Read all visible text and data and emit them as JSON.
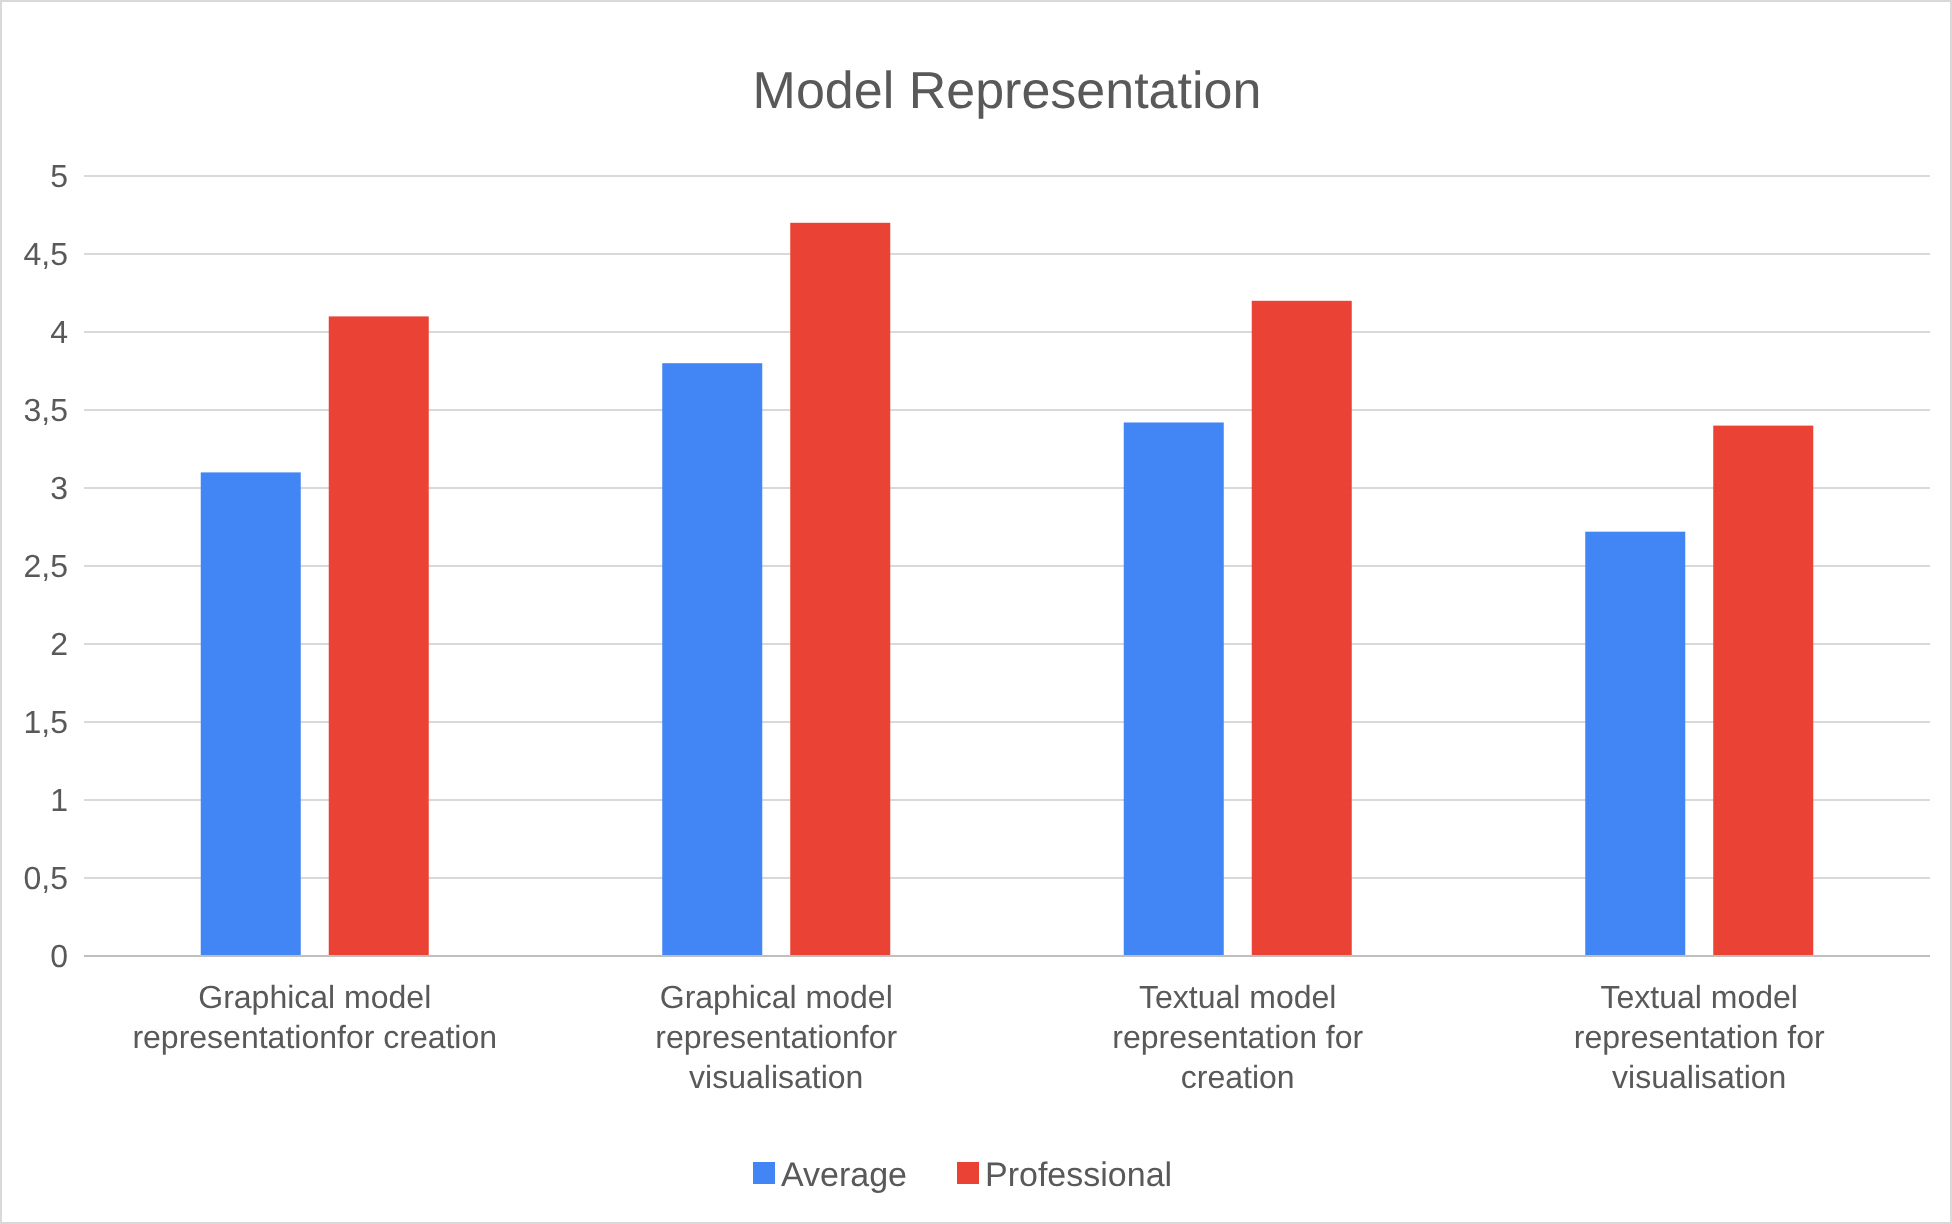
{
  "chart_data": {
    "type": "bar",
    "title": "Model Representation",
    "categories": [
      "Graphical model representationfor creation",
      "Graphical model representationfor visualisation",
      "Textual model representation for creation",
      "Textual model representation for visualisation"
    ],
    "series": [
      {
        "name": "Average",
        "color": "#4285f4",
        "values": [
          3.1,
          3.8,
          3.42,
          2.72
        ]
      },
      {
        "name": "Professional",
        "color": "#ea4335",
        "values": [
          4.1,
          4.7,
          4.2,
          3.4
        ]
      }
    ],
    "ylim": [
      0,
      5
    ],
    "yticks": [
      0,
      {
        "value": 0.5,
        "label": "0,5"
      },
      1,
      {
        "value": 1.5,
        "label": "1,5"
      },
      2,
      {
        "value": 2.5,
        "label": "2,5"
      },
      3,
      {
        "value": 3.5,
        "label": "3,5"
      },
      4,
      {
        "value": 4.5,
        "label": "4,5"
      },
      5
    ],
    "grid": "y",
    "legend": "bottom"
  }
}
